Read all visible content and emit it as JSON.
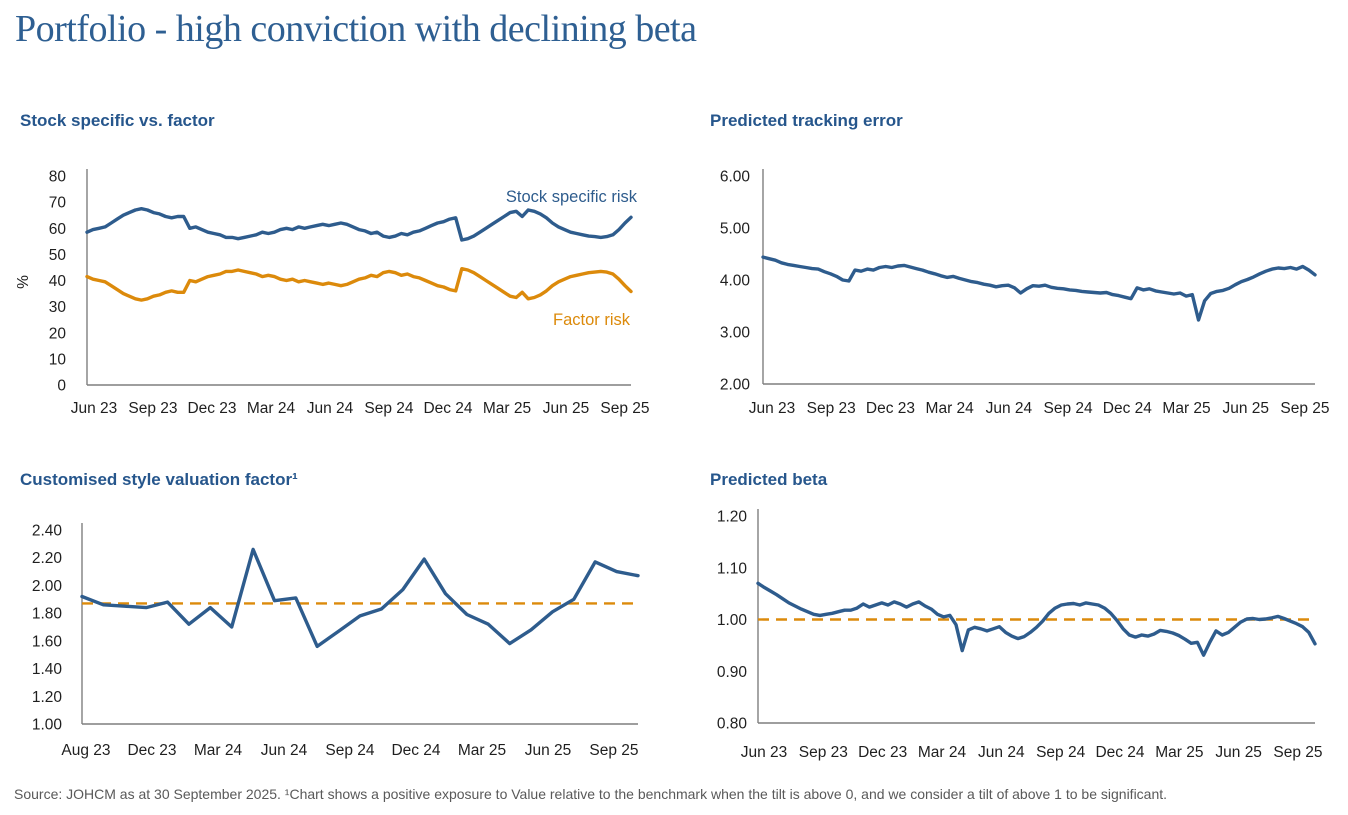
{
  "page": {
    "title": "Portfolio - high conviction with declining beta",
    "footer": "Source: JOHCM as at 30 September 2025. ¹Chart shows a positive exposure to Value relative to the benchmark when the tilt is above 0, and we consider a tilt of above 1 to be significant."
  },
  "colors": {
    "title_text": "#2E5F92",
    "heading_text": "#26568C",
    "blue_line": "#2E5C8D",
    "orange_line": "#DC8A0B",
    "axis": "#7F7F7F",
    "tick_text": "#1F1F1F",
    "footer_text": "#595959"
  },
  "chart_data": [
    {
      "id": "stock-specific-vs-factor",
      "heading": "Stock specific vs. factor",
      "type": "line",
      "xlabel": "",
      "ylabel": "%",
      "ylim": [
        0,
        80
      ],
      "yticks": [
        "0",
        "10",
        "20",
        "30",
        "40",
        "50",
        "60",
        "70",
        "80"
      ],
      "x_labels": [
        "Jun 23",
        "Sep 23",
        "Dec 23",
        "Mar 24",
        "Jun 24",
        "Sep 24",
        "Dec 24",
        "Mar 25",
        "Jun 25",
        "Sep 25"
      ],
      "grid": false,
      "legend_position": "labels-in-plot",
      "series": [
        {
          "name": "Stock specific risk",
          "color": "#2E5C8D",
          "values": [
            58.5,
            59.5,
            60.0,
            60.5,
            62.0,
            63.5,
            65.0,
            66.0,
            67.0,
            67.5,
            67.0,
            66.0,
            65.5,
            64.5,
            64.0,
            64.5,
            64.5,
            60.0,
            60.5,
            59.5,
            58.5,
            58.0,
            57.5,
            56.5,
            56.5,
            56.0,
            56.5,
            57.0,
            57.5,
            58.5,
            58.0,
            58.5,
            59.5,
            60.0,
            59.5,
            60.5,
            60.0,
            60.5,
            61.0,
            61.5,
            61.0,
            61.5,
            62.0,
            61.5,
            60.5,
            59.5,
            59.0,
            58.0,
            58.5,
            57.0,
            56.5,
            57.0,
            58.0,
            57.5,
            58.5,
            59.0,
            60.0,
            61.0,
            62.0,
            62.5,
            63.5,
            64.0,
            55.5,
            56.0,
            57.0,
            58.5,
            60.0,
            61.5,
            63.0,
            64.5,
            66.0,
            66.5,
            64.5,
            67.0,
            66.5,
            65.5,
            64.0,
            62.0,
            60.5,
            59.5,
            58.5,
            58.0,
            57.5,
            57.0,
            56.8,
            56.5,
            56.8,
            57.5,
            59.5,
            62.0,
            64.2
          ]
        },
        {
          "name": "Factor risk",
          "color": "#DC8A0B",
          "values": [
            41.5,
            40.5,
            40.0,
            39.5,
            38.0,
            36.5,
            35.0,
            34.0,
            33.0,
            32.5,
            33.0,
            34.0,
            34.5,
            35.5,
            36.0,
            35.5,
            35.5,
            40.0,
            39.5,
            40.5,
            41.5,
            42.0,
            42.5,
            43.5,
            43.5,
            44.0,
            43.5,
            43.0,
            42.5,
            41.5,
            42.0,
            41.5,
            40.5,
            40.0,
            40.5,
            39.5,
            40.0,
            39.5,
            39.0,
            38.5,
            39.0,
            38.5,
            38.0,
            38.5,
            39.5,
            40.5,
            41.0,
            42.0,
            41.5,
            43.0,
            43.5,
            43.0,
            42.0,
            42.5,
            41.5,
            41.0,
            40.0,
            39.0,
            38.0,
            37.5,
            36.5,
            36.0,
            44.5,
            44.0,
            43.0,
            41.5,
            40.0,
            38.5,
            37.0,
            35.5,
            34.0,
            33.5,
            35.5,
            33.0,
            33.5,
            34.5,
            36.0,
            38.0,
            39.5,
            40.5,
            41.5,
            42.0,
            42.5,
            43.0,
            43.2,
            43.5,
            43.2,
            42.5,
            40.5,
            38.0,
            35.8
          ]
        }
      ]
    },
    {
      "id": "predicted-tracking-error",
      "heading": "Predicted tracking error",
      "type": "line",
      "xlabel": "",
      "ylabel": "",
      "ylim": [
        2.0,
        6.0
      ],
      "yticks": [
        "2.00",
        "3.00",
        "4.00",
        "5.00",
        "6.00"
      ],
      "x_labels": [
        "Jun 23",
        "Sep 23",
        "Dec 23",
        "Mar 24",
        "Jun 24",
        "Sep 24",
        "Dec 24",
        "Mar 25",
        "Jun 25",
        "Sep 25"
      ],
      "grid": false,
      "legend_position": "none",
      "series": [
        {
          "name": "Predicted tracking error",
          "color": "#2E5C8D",
          "values": [
            4.44,
            4.41,
            4.38,
            4.33,
            4.3,
            4.28,
            4.26,
            4.24,
            4.22,
            4.21,
            4.16,
            4.12,
            4.07,
            4.0,
            3.98,
            4.19,
            4.17,
            4.21,
            4.19,
            4.24,
            4.26,
            4.24,
            4.27,
            4.28,
            4.25,
            4.22,
            4.19,
            4.15,
            4.12,
            4.08,
            4.05,
            4.07,
            4.03,
            4.0,
            3.97,
            3.95,
            3.92,
            3.9,
            3.87,
            3.89,
            3.9,
            3.85,
            3.75,
            3.83,
            3.89,
            3.88,
            3.9,
            3.86,
            3.84,
            3.83,
            3.81,
            3.8,
            3.78,
            3.77,
            3.76,
            3.75,
            3.76,
            3.72,
            3.7,
            3.67,
            3.64,
            3.85,
            3.81,
            3.83,
            3.79,
            3.77,
            3.75,
            3.73,
            3.75,
            3.69,
            3.72,
            3.23,
            3.6,
            3.74,
            3.78,
            3.8,
            3.84,
            3.91,
            3.97,
            4.01,
            4.06,
            4.12,
            4.17,
            4.21,
            4.23,
            4.22,
            4.24,
            4.21,
            4.26,
            4.19,
            4.1
          ]
        }
      ]
    },
    {
      "id": "customised-style-valuation-factor",
      "heading": "Customised style valuation factor¹",
      "type": "line",
      "xlabel": "",
      "ylabel": "",
      "ylim": [
        1.0,
        2.4
      ],
      "yticks": [
        "1.00",
        "1.20",
        "1.40",
        "1.60",
        "1.80",
        "2.00",
        "2.20",
        "2.40"
      ],
      "x_labels": [
        "Aug 23",
        "Dec 23",
        "Mar 24",
        "Jun 24",
        "Sep 24",
        "Dec 24",
        "Mar 25",
        "Jun 25",
        "Sep 25"
      ],
      "grid": false,
      "legend_position": "none",
      "ref_line": {
        "value": 1.87,
        "style": "dashed",
        "color": "#DC8A0B"
      },
      "series": [
        {
          "name": "Customised style valuation factor",
          "color": "#2E5C8D",
          "values": [
            1.92,
            1.86,
            1.85,
            1.84,
            1.88,
            1.72,
            1.84,
            1.7,
            2.26,
            1.89,
            1.91,
            1.56,
            1.67,
            1.78,
            1.83,
            1.97,
            2.19,
            1.94,
            1.79,
            1.72,
            1.58,
            1.68,
            1.81,
            1.9,
            2.17,
            2.1,
            2.07
          ]
        }
      ]
    },
    {
      "id": "predicted-beta",
      "heading": "Predicted beta",
      "type": "line",
      "xlabel": "",
      "ylabel": "",
      "ylim": [
        0.8,
        1.2
      ],
      "yticks": [
        "0.80",
        "0.90",
        "1.00",
        "1.10",
        "1.20"
      ],
      "x_labels": [
        "Jun 23",
        "Sep 23",
        "Dec 23",
        "Mar 24",
        "Jun 24",
        "Sep 24",
        "Dec 24",
        "Mar 25",
        "Jun 25",
        "Sep 25"
      ],
      "grid": false,
      "legend_position": "none",
      "ref_line": {
        "value": 1.0,
        "style": "dashed",
        "color": "#DC8A0B"
      },
      "series": [
        {
          "name": "Predicted beta",
          "color": "#2E5C8D",
          "values": [
            1.07,
            1.062,
            1.055,
            1.048,
            1.04,
            1.032,
            1.026,
            1.02,
            1.015,
            1.01,
            1.008,
            1.01,
            1.012,
            1.015,
            1.018,
            1.018,
            1.022,
            1.03,
            1.024,
            1.028,
            1.032,
            1.028,
            1.034,
            1.03,
            1.024,
            1.03,
            1.034,
            1.026,
            1.02,
            1.01,
            1.005,
            1.008,
            0.99,
            0.94,
            0.98,
            0.985,
            0.982,
            0.978,
            0.982,
            0.986,
            0.975,
            0.968,
            0.963,
            0.967,
            0.975,
            0.985,
            0.997,
            1.012,
            1.022,
            1.028,
            1.03,
            1.031,
            1.028,
            1.032,
            1.03,
            1.028,
            1.022,
            1.012,
            0.998,
            0.982,
            0.97,
            0.966,
            0.97,
            0.968,
            0.972,
            0.979,
            0.977,
            0.974,
            0.969,
            0.962,
            0.954,
            0.956,
            0.931,
            0.956,
            0.978,
            0.97,
            0.975,
            0.985,
            0.995,
            1.001,
            1.002,
            1.0,
            1.001,
            1.003,
            1.006,
            1.002,
            0.997,
            0.992,
            0.986,
            0.975,
            0.953
          ]
        }
      ]
    }
  ]
}
